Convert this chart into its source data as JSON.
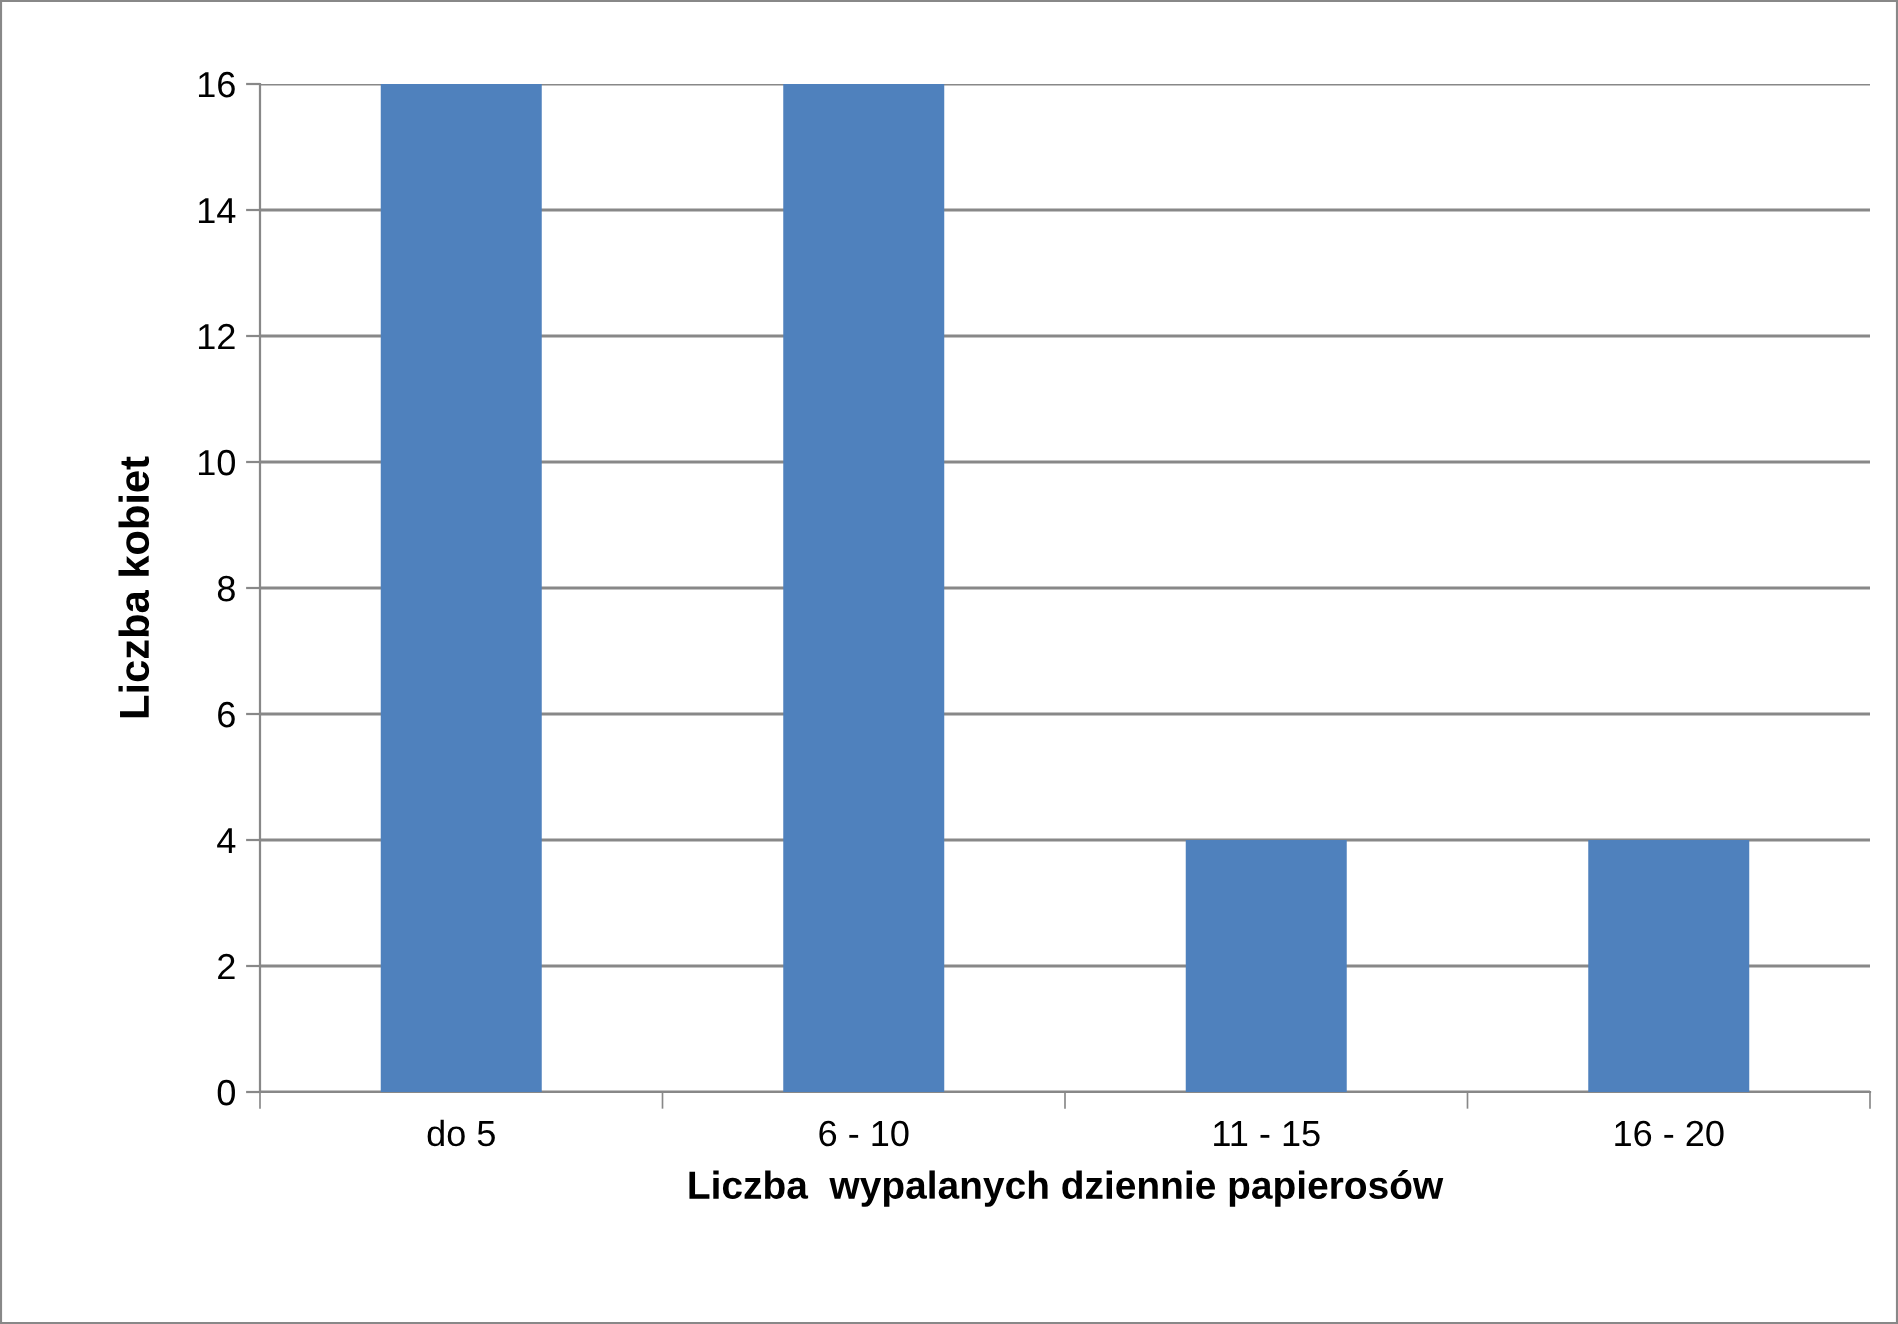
{
  "chart_data": {
    "type": "bar",
    "xlabel": "Liczba  wypalanych dziennie papierosów",
    "ylabel": "Liczba kobiet",
    "categories": [
      "do 5",
      "6 - 10",
      "11 - 15",
      "16 - 20"
    ],
    "values": [
      16,
      16,
      4,
      4
    ],
    "color": "#4f81bd",
    "ylim": [
      0,
      16
    ],
    "yticks": [
      0,
      2,
      4,
      6,
      8,
      10,
      12,
      14,
      16
    ],
    "grid": "y",
    "legend": false
  }
}
